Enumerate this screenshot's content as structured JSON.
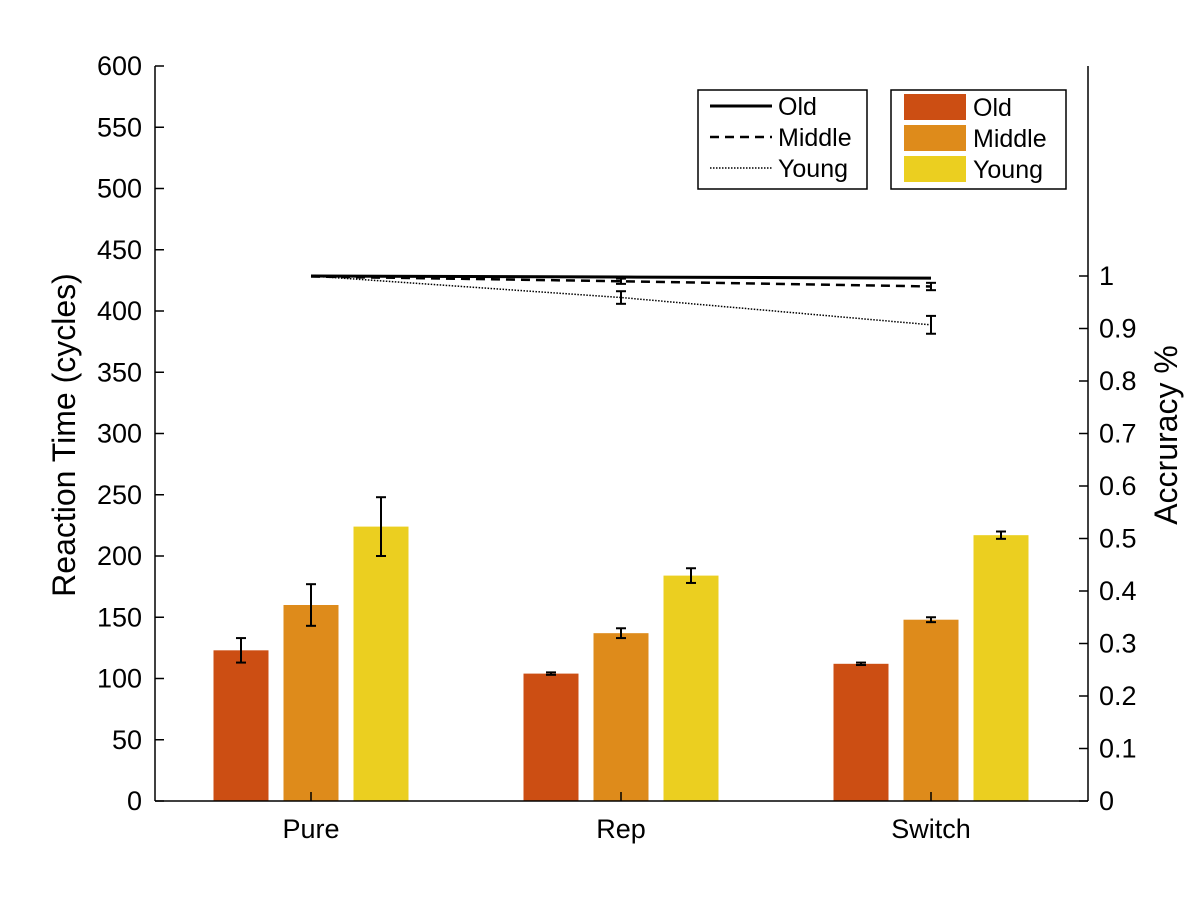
{
  "chart_data": {
    "type": "bar",
    "categories": [
      "Pure",
      "Rep",
      "Switch"
    ],
    "ylabel": "Reaction Time (cycles)",
    "ylim": [
      0,
      600
    ],
    "yticks": [
      0,
      50,
      100,
      150,
      200,
      250,
      300,
      350,
      400,
      450,
      500,
      550,
      600
    ],
    "bar_series": [
      {
        "name": "Old",
        "color": "#CC4E13",
        "values": [
          123,
          104,
          112
        ],
        "errors": [
          10,
          1,
          1
        ]
      },
      {
        "name": "Middle",
        "color": "#DE8B1B",
        "values": [
          160,
          137,
          148
        ],
        "errors": [
          17,
          4,
          2
        ]
      },
      {
        "name": "Young",
        "color": "#EBCF20",
        "values": [
          224,
          184,
          217
        ],
        "errors": [
          24,
          6,
          3
        ]
      }
    ],
    "y2label": "Accruracу %",
    "y2lim": [
      0,
      1.4
    ],
    "y2ticks": [
      0,
      0.1,
      0.2,
      0.3,
      0.4,
      0.5,
      0.6,
      0.7,
      0.8,
      0.9,
      1
    ],
    "line_series": [
      {
        "name": "Old",
        "style": "solid",
        "values": [
          1.0,
          0.998,
          0.996
        ],
        "errors": [
          0,
          0,
          0
        ]
      },
      {
        "name": "Middle",
        "style": "dashed",
        "values": [
          0.999,
          0.99,
          0.98
        ],
        "errors": [
          0,
          0.005,
          0.007
        ]
      },
      {
        "name": "Young",
        "style": "dotted",
        "values": [
          1.0,
          0.959,
          0.907
        ],
        "errors": [
          0,
          0.012,
          0.017
        ]
      }
    ],
    "legend_lines": [
      "Old",
      "Middle",
      "Young"
    ],
    "legend_bars": [
      "Old",
      "Middle",
      "Young"
    ],
    "grid": false
  }
}
